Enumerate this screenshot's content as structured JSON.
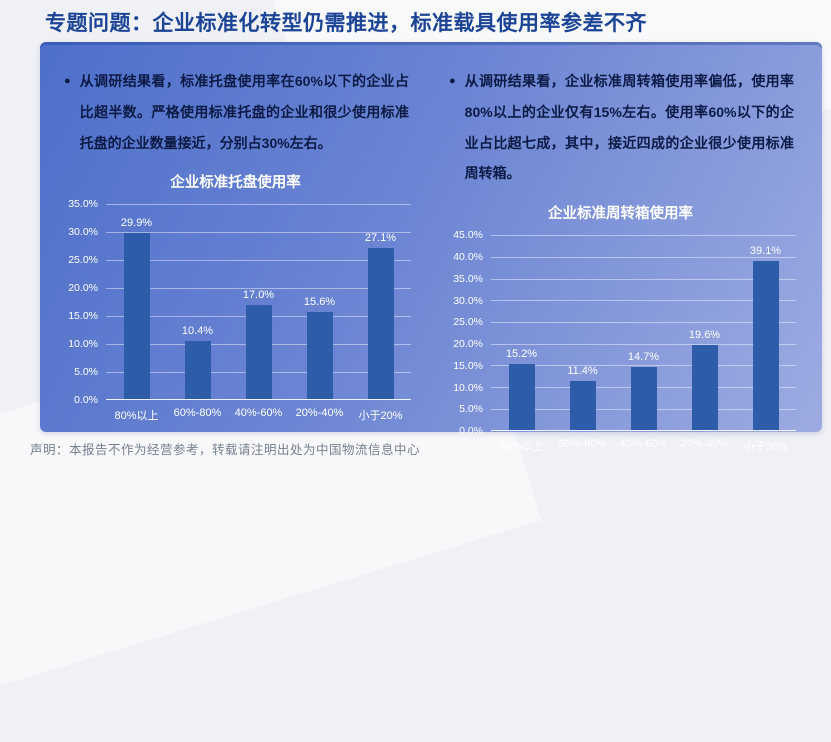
{
  "page": {
    "title": "专题问题：企业标准化转型仍需推进，标准载具使用率参差不齐",
    "footer": "声明：本报告不作为经营参考，转载请注明出处为中国物流信息中心"
  },
  "panel": {
    "bullets": [
      "从调研结果看，标准托盘使用率在60%以下的企业占比超半数。严格使用标准托盘的企业和很少使用标准托盘的企业数量接近，分别占30%左右。",
      "从调研结果看，企业标准周转箱使用率偏低，使用率80%以上的企业仅有15%左右。使用率60%以下的企业占比超七成，其中，接近四成的企业很少使用标准周转箱。"
    ]
  },
  "colors": {
    "title_text": "#1b4496",
    "panel_gradient_start": "#4d70ca",
    "panel_gradient_end": "#9dabe1",
    "bar": "#2d5ca8",
    "bullet_text": "#0c1a45",
    "chart_text": "#ffffff",
    "footer_text": "#76808f"
  },
  "chart_data": [
    {
      "type": "bar",
      "title": "企业标准托盘使用率",
      "categories": [
        "80%以上",
        "60%-80%",
        "40%-60%",
        "20%-40%",
        "小于20%"
      ],
      "values": [
        29.9,
        10.4,
        17.0,
        15.6,
        27.1
      ],
      "unit": "%",
      "xlabel": "",
      "ylabel": "",
      "ylim": [
        0,
        35
      ],
      "ytick_step": 5,
      "yticks": [
        "35.0%",
        "30.0%",
        "25.0%",
        "20.0%",
        "15.0%",
        "10.0%",
        "5.0%",
        "0.0%"
      ],
      "grid": true,
      "legend": "none",
      "data_labels": true
    },
    {
      "type": "bar",
      "title": "企业标准周转箱使用率",
      "categories": [
        "80%以上",
        "60%-80%",
        "40%-60%",
        "20%-40%",
        "小于20%"
      ],
      "values": [
        15.2,
        11.4,
        14.7,
        19.6,
        39.1
      ],
      "unit": "%",
      "xlabel": "",
      "ylabel": "",
      "ylim": [
        0,
        45
      ],
      "ytick_step": 5,
      "yticks": [
        "45.0%",
        "40.0%",
        "35.0%",
        "30.0%",
        "25.0%",
        "20.0%",
        "15.0%",
        "10.0%",
        "5.0%",
        "0.0%"
      ],
      "grid": true,
      "legend": "none",
      "data_labels": true
    }
  ]
}
